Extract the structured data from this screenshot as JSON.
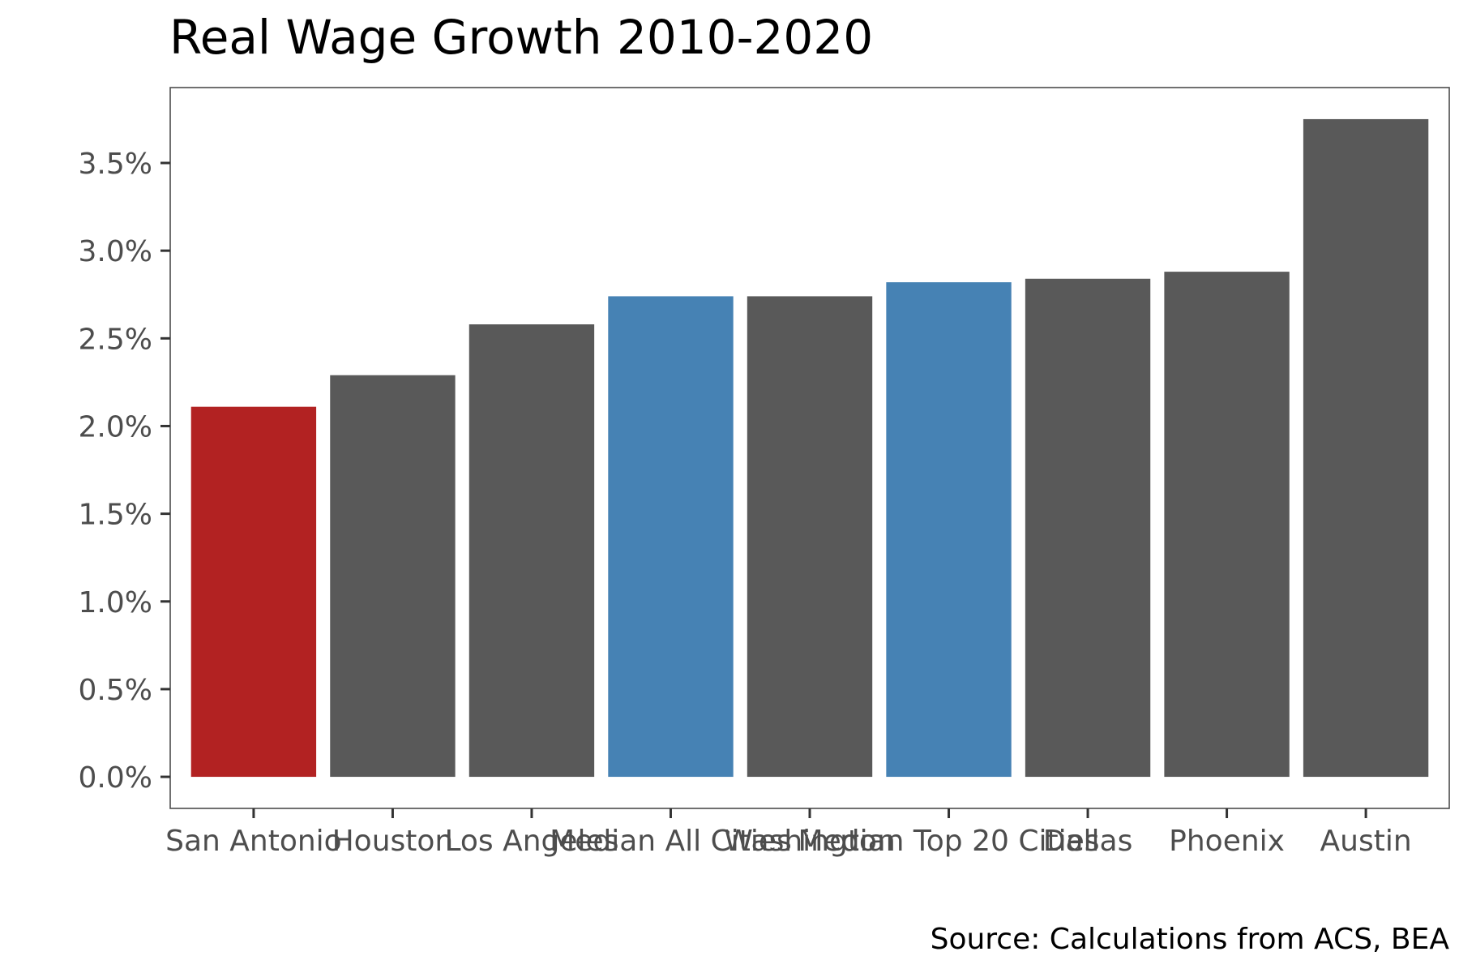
{
  "chart_data": {
    "type": "bar",
    "title": "Real Wage Growth 2010-2020",
    "caption": "Source: Calculations from ACS, BEA",
    "xlabel": "",
    "ylabel": "",
    "categories": [
      "San Antonio",
      "Houston",
      "Los Angeles",
      "Median All Cities",
      "Washington",
      "Median Top 20 Cities",
      "Dallas",
      "Phoenix",
      "Austin"
    ],
    "values": [
      2.11,
      2.29,
      2.58,
      2.74,
      2.74,
      2.82,
      2.84,
      2.88,
      3.75
    ],
    "bar_colors": [
      "#b22222",
      "#595959",
      "#595959",
      "#4682b4",
      "#595959",
      "#4682b4",
      "#595959",
      "#595959",
      "#595959"
    ],
    "yticks": [
      0.0,
      0.5,
      1.0,
      1.5,
      2.0,
      2.5,
      3.0,
      3.5
    ],
    "ytick_labels": [
      "0.0%",
      "0.5%",
      "1.0%",
      "1.5%",
      "2.0%",
      "2.5%",
      "3.0%",
      "3.5%"
    ],
    "ylim": [
      -0.18,
      3.93
    ],
    "grid": false,
    "legend": "none"
  }
}
